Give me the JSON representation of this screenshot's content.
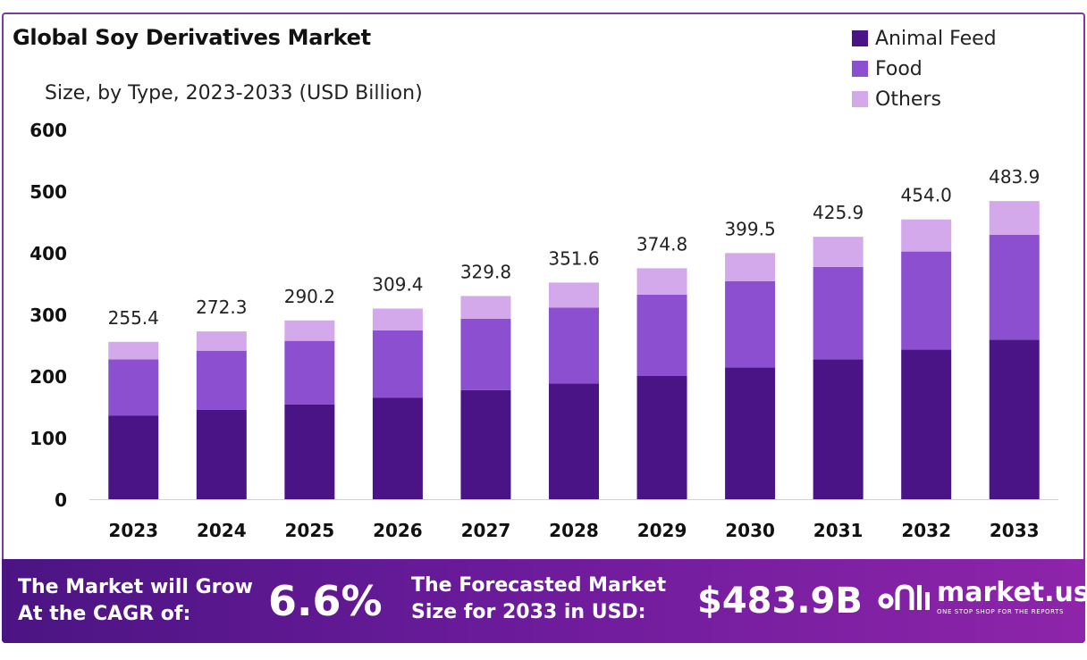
{
  "chart_data": {
    "type": "bar",
    "stacked": true,
    "title": "Global Soy Derivatives Market",
    "subtitle": "Size, by Type, 2023-2033 (USD Billion)",
    "categories": [
      "2023",
      "2024",
      "2025",
      "2026",
      "2027",
      "2028",
      "2029",
      "2030",
      "2031",
      "2032",
      "2033"
    ],
    "series": [
      {
        "name": "Animal Feed",
        "color": "#4a1486",
        "values": [
          136,
          145,
          154,
          165,
          177,
          188,
          200,
          214,
          227,
          243,
          259
        ]
      },
      {
        "name": "Food",
        "color": "#8b4fcf",
        "values": [
          91,
          96,
          103,
          109,
          116,
          123,
          132,
          140,
          150,
          159,
          170
        ]
      },
      {
        "name": "Others",
        "color": "#d4a9ec",
        "values": [
          28.4,
          31.3,
          33.2,
          35.4,
          36.8,
          40.6,
          42.8,
          45.5,
          48.9,
          52.0,
          54.9
        ]
      }
    ],
    "totals": [
      "255.4",
      "272.3",
      "290.2",
      "309.4",
      "329.8",
      "351.6",
      "374.8",
      "399.5",
      "425.9",
      "454.0",
      "483.9"
    ],
    "ylim": [
      0,
      600
    ],
    "yticks": [
      "0",
      "100",
      "200",
      "300",
      "400",
      "500",
      "600"
    ],
    "xlabel": "",
    "ylabel": "",
    "grid": false,
    "legend_position": "top-right"
  },
  "banner": {
    "cagr_label_line1": "The Market will Grow",
    "cagr_label_line2": "At the CAGR of:",
    "cagr_value": "6.6%",
    "forecast_label_line1": "The Forecasted Market",
    "forecast_label_line2": "Size for 2033 in USD:",
    "forecast_value": "$483.9B",
    "brand_name": "market.us",
    "brand_tagline": "ONE STOP SHOP FOR THE REPORTS"
  }
}
